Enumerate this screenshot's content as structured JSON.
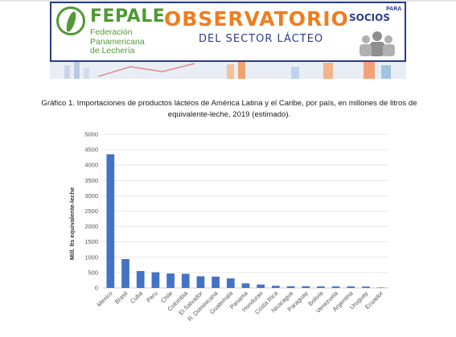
{
  "banner": {
    "brand_name": "FEPALE",
    "brand_sub": [
      "Federación",
      "Panamericana",
      "de Lechería"
    ],
    "title": "OBSERVATORIO",
    "subtitle": "DEL SECTOR LÁCTEO",
    "para": "PARA",
    "socios": "SOCIOS"
  },
  "caption": "Gráfico 1. Importaciones de productos lácteos de América Latina y el Caribe, por país, en millones de litros de equivalente-leche, 2019 (estimado).",
  "chart_data": {
    "type": "bar",
    "title": "",
    "xlabel": "",
    "ylabel": "Mill. lts equivalente-leche",
    "ylim": [
      0,
      5000
    ],
    "yticks": [
      0,
      500,
      1000,
      1500,
      2000,
      2500,
      3000,
      3500,
      4000,
      4500,
      5000
    ],
    "grid": true,
    "bar_color": "#4472c4",
    "categories": [
      "Mexico",
      "Brasil",
      "Cuba",
      "Peru",
      "Chile",
      "Colombia",
      "El Salvador",
      "R. Dominicana",
      "Guatemala",
      "Panama",
      "Honduras",
      "Costa Rica",
      "Nicaragua",
      "Paraguay",
      "Bolivia",
      "Venezuela",
      "Argentina",
      "Uruguay",
      "Ecuador"
    ],
    "values": [
      4350,
      940,
      550,
      510,
      470,
      460,
      380,
      370,
      310,
      150,
      110,
      70,
      55,
      55,
      50,
      50,
      50,
      45,
      15
    ]
  }
}
